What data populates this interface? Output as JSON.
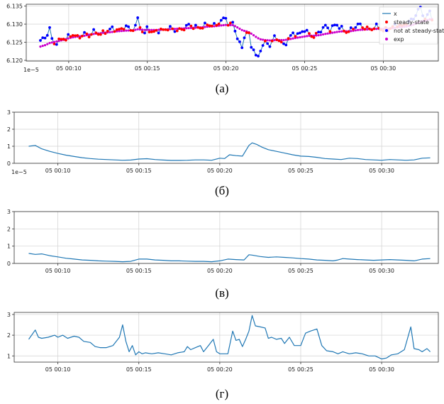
{
  "chart_data": [
    {
      "type": "scatter",
      "panel": "a",
      "caption": "(а)",
      "scale_label": "1e−5",
      "ylim": [
        6.1198,
        6.1355
      ],
      "yticks": [
        6.12,
        6.125,
        6.13,
        6.135
      ],
      "ytick_labels": [
        "6.120",
        "6.125",
        "6.130",
        "6.135"
      ],
      "xlim": [
        7.3,
        33.5
      ],
      "xticks": [
        10,
        15,
        20,
        25,
        30
      ],
      "xtick_labels": [
        "05 00:10",
        "05 00:15",
        "05 00:20",
        "05 00:25",
        "05 00:30"
      ],
      "grid": true,
      "legend_position": "right",
      "legend": [
        {
          "label": "x",
          "kind": "line",
          "color": "#1f77b4"
        },
        {
          "label": "steady-state",
          "kind": "dot",
          "color": "#ff0000"
        },
        {
          "label": "not at steady-state",
          "kind": "dot",
          "color": "#0000ff"
        },
        {
          "label": "exp",
          "kind": "dot",
          "color": "#cc00cc"
        }
      ],
      "x_knots": [
        8.2,
        8.5,
        8.8,
        9.0,
        9.3,
        9.6,
        9.8,
        10.0,
        10.3,
        10.6,
        11.0,
        11.3,
        11.6,
        12.0,
        12.4,
        12.7,
        13.0,
        13.3,
        13.6,
        14.0,
        14.2,
        14.4,
        14.6,
        14.8,
        15.0,
        15.3,
        15.6,
        16.0,
        16.4,
        16.8,
        17.2,
        17.6,
        18.0,
        18.4,
        18.8,
        19.2,
        19.6,
        20.0,
        20.2,
        20.4,
        20.6,
        20.8,
        21.0,
        21.2,
        21.4,
        21.6,
        21.8,
        22.0,
        22.2,
        22.5,
        22.8,
        23.1,
        23.4,
        23.7,
        24.0,
        24.3,
        24.6,
        25.0,
        25.3,
        25.6,
        26.0,
        26.3,
        26.6,
        27.0,
        27.3,
        27.6,
        28.0,
        28.4,
        28.8,
        29.2,
        29.6,
        30.0,
        30.4,
        30.8,
        31.0,
        31.2,
        31.5,
        31.8,
        32.0,
        32.3,
        32.5,
        32.7,
        32.9,
        33.1
      ],
      "x_values": [
        6.1255,
        6.1262,
        6.1288,
        6.1245,
        6.125,
        6.1262,
        6.1258,
        6.1266,
        6.1272,
        6.1262,
        6.1274,
        6.1268,
        6.128,
        6.1272,
        6.128,
        6.1288,
        6.1285,
        6.1283,
        6.1296,
        6.1282,
        6.129,
        6.1315,
        6.1286,
        6.127,
        6.1292,
        6.1275,
        6.1282,
        6.1283,
        6.129,
        6.1282,
        6.1285,
        6.1298,
        6.1292,
        6.129,
        6.13,
        6.1295,
        6.1305,
        6.132,
        6.129,
        6.131,
        6.128,
        6.125,
        6.1235,
        6.127,
        6.1282,
        6.1242,
        6.1226,
        6.12,
        6.1232,
        6.125,
        6.1242,
        6.1265,
        6.1255,
        6.124,
        6.1262,
        6.1275,
        6.127,
        6.1285,
        6.1272,
        6.1265,
        6.1282,
        6.1295,
        6.1285,
        6.13,
        6.129,
        6.1278,
        6.1285,
        6.13,
        6.129,
        6.1285,
        6.1295,
        6.1282,
        6.1288,
        6.1297,
        6.13,
        6.1292,
        6.1305,
        6.131,
        6.132,
        6.1348,
        6.133,
        6.131,
        6.1338,
        6.1318
      ],
      "exp_values": [
        6.1238,
        6.1242,
        6.1248,
        6.125,
        6.1253,
        6.1256,
        6.1258,
        6.1261,
        6.1264,
        6.1266,
        6.1268,
        6.1271,
        6.1273,
        6.1275,
        6.1277,
        6.1278,
        6.128,
        6.1281,
        6.1282,
        6.1283,
        6.1284,
        6.1286,
        6.1285,
        6.1284,
        6.1284,
        6.1284,
        6.1284,
        6.1285,
        6.1286,
        6.1287,
        6.1288,
        6.1289,
        6.129,
        6.1291,
        6.1293,
        6.1294,
        6.1296,
        6.1298,
        6.1297,
        6.1298,
        6.1294,
        6.1289,
        6.1284,
        6.1281,
        6.1279,
        6.1274,
        6.1268,
        6.1262,
        6.1258,
        6.1256,
        6.1255,
        6.1256,
        6.1256,
        6.1256,
        6.1258,
        6.1261,
        6.1263,
        6.1266,
        6.1268,
        6.1268,
        6.127,
        6.1273,
        6.1275,
        6.1278,
        6.128,
        6.128,
        6.1281,
        6.1284,
        6.1285,
        6.1286,
        6.1287,
        6.1287,
        6.1288,
        6.129,
        6.1292,
        6.1292,
        6.1294,
        6.1297,
        6.13,
        6.1306,
        6.1309,
        6.1309,
        6.1313,
        6.1314
      ]
    },
    {
      "type": "line",
      "panel": "b",
      "caption": "(б)",
      "scale_label": "1e−5",
      "color": "#1f77b4",
      "ylim": [
        0,
        3
      ],
      "yticks": [
        0,
        1,
        2,
        3
      ],
      "ytick_labels": [
        "0",
        "1",
        "2",
        "3"
      ],
      "xlim": [
        7.3,
        33.5
      ],
      "xticks": [
        10,
        15,
        20,
        25,
        30
      ],
      "xtick_labels": [
        "05 00:10",
        "05 00:15",
        "05 00:20",
        "05 00:25",
        "05 00:30"
      ],
      "grid": true,
      "x": [
        8.2,
        8.6,
        9.0,
        9.5,
        10.0,
        10.5,
        11.0,
        11.5,
        12.0,
        12.5,
        13.0,
        13.5,
        14.0,
        14.5,
        15.0,
        15.5,
        16.0,
        16.5,
        17.0,
        17.5,
        18.0,
        18.5,
        19.0,
        19.5,
        20.0,
        20.3,
        20.6,
        21.0,
        21.4,
        21.8,
        22.0,
        22.3,
        22.6,
        23.0,
        23.5,
        24.0,
        24.5,
        25.0,
        25.5,
        26.0,
        26.5,
        27.0,
        27.5,
        28.0,
        28.5,
        29.0,
        29.5,
        30.0,
        30.5,
        31.0,
        31.5,
        32.0,
        32.5,
        33.0
      ],
      "y": [
        1.0,
        1.05,
        0.85,
        0.7,
        0.58,
        0.48,
        0.4,
        0.33,
        0.28,
        0.24,
        0.22,
        0.2,
        0.18,
        0.19,
        0.25,
        0.27,
        0.22,
        0.19,
        0.17,
        0.17,
        0.18,
        0.2,
        0.2,
        0.18,
        0.3,
        0.28,
        0.5,
        0.45,
        0.42,
        1.05,
        1.2,
        1.1,
        0.95,
        0.8,
        0.7,
        0.6,
        0.5,
        0.42,
        0.4,
        0.35,
        0.28,
        0.25,
        0.22,
        0.3,
        0.28,
        0.22,
        0.2,
        0.18,
        0.22,
        0.2,
        0.18,
        0.2,
        0.3,
        0.32
      ]
    },
    {
      "type": "line",
      "panel": "v",
      "caption": "(в)",
      "color": "#1f77b4",
      "ylim": [
        0,
        3
      ],
      "yticks": [
        0,
        1,
        2,
        3
      ],
      "ytick_labels": [
        "0",
        "1",
        "2",
        "3"
      ],
      "xlim": [
        7.3,
        33.5
      ],
      "xticks": [
        10,
        15,
        20,
        25,
        30
      ],
      "xtick_labels": [
        "05 00:10",
        "05 00:15",
        "05 00:20",
        "05 00:25",
        "05 00:30"
      ],
      "grid": true,
      "x": [
        8.2,
        8.6,
        9.0,
        9.5,
        10.0,
        10.5,
        11.0,
        11.5,
        12.0,
        12.5,
        13.0,
        13.5,
        14.0,
        14.5,
        15.0,
        15.5,
        16.0,
        16.5,
        17.0,
        17.5,
        18.0,
        18.5,
        19.0,
        19.5,
        20.0,
        20.5,
        21.0,
        21.5,
        21.8,
        22.0,
        22.5,
        23.0,
        23.5,
        24.0,
        24.5,
        25.0,
        25.5,
        26.0,
        26.5,
        27.0,
        27.3,
        27.6,
        28.0,
        28.5,
        29.0,
        29.5,
        30.0,
        30.5,
        31.0,
        31.5,
        32.0,
        32.5,
        33.0
      ],
      "y": [
        0.58,
        0.52,
        0.55,
        0.45,
        0.38,
        0.3,
        0.25,
        0.2,
        0.18,
        0.15,
        0.13,
        0.12,
        0.1,
        0.12,
        0.25,
        0.25,
        0.2,
        0.18,
        0.15,
        0.15,
        0.13,
        0.12,
        0.12,
        0.1,
        0.15,
        0.25,
        0.22,
        0.2,
        0.5,
        0.48,
        0.4,
        0.35,
        0.38,
        0.35,
        0.32,
        0.28,
        0.25,
        0.2,
        0.18,
        0.15,
        0.2,
        0.28,
        0.25,
        0.22,
        0.2,
        0.18,
        0.2,
        0.22,
        0.2,
        0.18,
        0.15,
        0.25,
        0.28
      ]
    },
    {
      "type": "line",
      "panel": "g",
      "caption": "(г)",
      "color": "#1f77b4",
      "ylim": [
        0.7,
        3.1
      ],
      "yticks": [
        1,
        2,
        3
      ],
      "ytick_labels": [
        "1",
        "2",
        "3"
      ],
      "xlim": [
        7.3,
        33.5
      ],
      "xticks": [
        10,
        15,
        20,
        25,
        30
      ],
      "xtick_labels": [
        "05 00:10",
        "05 00:15",
        "05 00:20",
        "05 00:25",
        "05 00:30"
      ],
      "grid": true,
      "x": [
        8.2,
        8.6,
        8.8,
        9.0,
        9.4,
        9.8,
        10.0,
        10.3,
        10.6,
        11.0,
        11.3,
        11.6,
        12.0,
        12.3,
        12.6,
        13.0,
        13.4,
        13.8,
        14.0,
        14.2,
        14.4,
        14.6,
        14.8,
        15.0,
        15.2,
        15.4,
        15.8,
        16.2,
        16.6,
        17.0,
        17.4,
        17.8,
        18.0,
        18.2,
        18.5,
        18.8,
        19.0,
        19.3,
        19.6,
        19.8,
        20.0,
        20.2,
        20.5,
        20.8,
        21.0,
        21.2,
        21.4,
        21.6,
        21.8,
        22.0,
        22.2,
        22.5,
        22.8,
        23.0,
        23.2,
        23.5,
        23.8,
        24.0,
        24.3,
        24.6,
        25.0,
        25.3,
        25.6,
        26.0,
        26.3,
        26.6,
        27.0,
        27.3,
        27.6,
        28.0,
        28.4,
        28.8,
        29.2,
        29.6,
        30.0,
        30.3,
        30.6,
        31.0,
        31.4,
        31.8,
        32.0,
        32.3,
        32.5,
        32.8,
        33.0
      ],
      "y": [
        1.8,
        2.25,
        1.9,
        1.85,
        1.9,
        2.0,
        1.9,
        2.0,
        1.85,
        1.95,
        1.9,
        1.7,
        1.65,
        1.45,
        1.4,
        1.4,
        1.5,
        1.9,
        2.5,
        1.7,
        1.2,
        1.5,
        1.05,
        1.2,
        1.1,
        1.15,
        1.1,
        1.15,
        1.1,
        1.05,
        1.15,
        1.2,
        1.45,
        1.3,
        1.4,
        1.5,
        1.2,
        1.5,
        1.8,
        1.2,
        1.1,
        1.1,
        1.1,
        2.2,
        1.75,
        1.8,
        1.45,
        1.8,
        2.2,
        2.95,
        2.45,
        2.4,
        2.35,
        1.85,
        1.9,
        1.8,
        1.85,
        1.6,
        1.9,
        1.5,
        1.5,
        2.1,
        2.2,
        2.3,
        1.5,
        1.25,
        1.2,
        1.1,
        1.2,
        1.1,
        1.15,
        1.1,
        1.0,
        1.0,
        0.85,
        0.9,
        1.05,
        1.1,
        1.3,
        2.4,
        1.35,
        1.3,
        1.2,
        1.35,
        1.2
      ]
    }
  ]
}
